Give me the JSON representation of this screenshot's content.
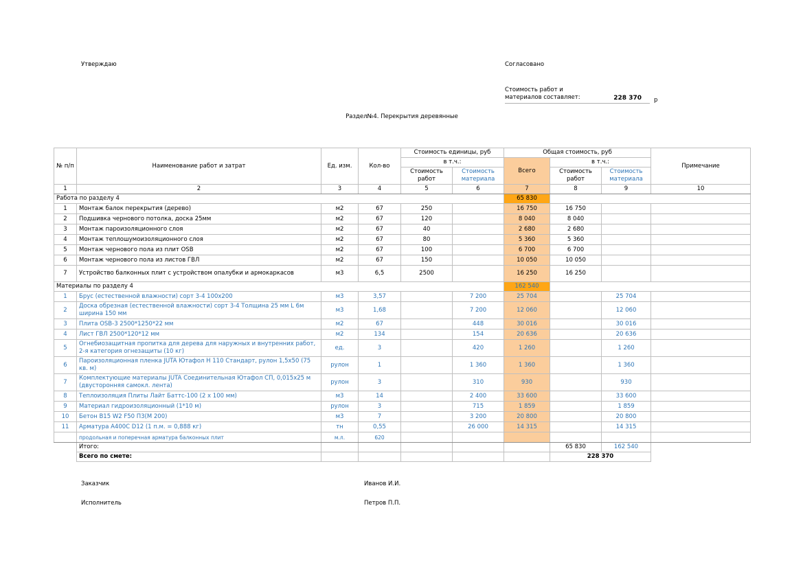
{
  "page": {
    "approve_label": "Утверждаю",
    "agree_label": "Согласовано",
    "cost_statement_label": "Стоимость работ и материалов составляет:",
    "cost_total": "228 370",
    "currency": "р",
    "section_title": "Раздел№4. Перекрытия деревянные"
  },
  "table": {
    "headers": {
      "num": "№ п/п",
      "name": "Наименование работ и затрат",
      "unit": "Ед. изм.",
      "qty": "Кол-во",
      "unit_cost_group": "Стоимость единицы, руб",
      "total_cost_group": "Общая стоимость, руб",
      "incl": "в т.ч.:",
      "work_cost": "Стоимость работ",
      "material_cost": "Стоимость материала",
      "total": "Всего",
      "note": "Примечание"
    },
    "column_numbers": [
      "1",
      "2",
      "3",
      "4",
      "5",
      "6",
      "7",
      "8",
      "9",
      "10"
    ],
    "sections": [
      {
        "title": "Работа по разделу 4",
        "total": "65 830",
        "materials": false,
        "rows": [
          {
            "num": "1",
            "name": "Монтаж балок перекрытия (дерево)",
            "unit": "м2",
            "qty": "67",
            "unit_work": "250",
            "unit_mat": "",
            "total": "16 750",
            "work": "16 750",
            "mat": "",
            "note": ""
          },
          {
            "num": "2",
            "name": "Подшивка чернового потолка, доска 25мм",
            "unit": "м2",
            "qty": "67",
            "unit_work": "120",
            "unit_mat": "",
            "total": "8 040",
            "work": "8 040",
            "mat": "",
            "note": ""
          },
          {
            "num": "3",
            "name": "Монтаж пароизоляционного слоя",
            "unit": "м2",
            "qty": "67",
            "unit_work": "40",
            "unit_mat": "",
            "total": "2 680",
            "work": "2 680",
            "mat": "",
            "note": ""
          },
          {
            "num": "4",
            "name": "Монтаж теплошумоизоляционного слоя",
            "unit": "м2",
            "qty": "67",
            "unit_work": "80",
            "unit_mat": "",
            "total": "5 360",
            "work": "5 360",
            "mat": "",
            "note": ""
          },
          {
            "num": "5",
            "name": "Монтаж чернового пола из плит OSB",
            "unit": "м2",
            "qty": "67",
            "unit_work": "100",
            "unit_mat": "",
            "total": "6 700",
            "work": "6 700",
            "mat": "",
            "note": ""
          },
          {
            "num": "6",
            "name": "Монтаж чернового пола из листов ГВЛ",
            "unit": "м2",
            "qty": "67",
            "unit_work": "150",
            "unit_mat": "",
            "total": "10 050",
            "work": "10 050",
            "mat": "",
            "note": ""
          },
          {
            "num": "7",
            "name": "Устройство балконных плит с устройством опалубки и армокаркасов",
            "unit": "м3",
            "qty": "6,5",
            "unit_work": "2500",
            "unit_mat": "",
            "total": "16 250",
            "work": "16 250",
            "mat": "",
            "note": "",
            "tall": true
          }
        ]
      },
      {
        "title": "Материалы по разделу 4",
        "total": "162 540",
        "materials": true,
        "rows": [
          {
            "num": "1",
            "name": "Брус (естественной влажности) сорт 3-4 100х200",
            "unit": "м3",
            "qty": "3,57",
            "unit_work": "",
            "unit_mat": "7 200",
            "total": "25 704",
            "work": "",
            "mat": "25 704",
            "note": ""
          },
          {
            "num": "2",
            "name": "Доска обрезная (естественной влажности) сорт 3-4 Толщина 25 мм L 6м ширина 150 мм",
            "unit": "м3",
            "qty": "1,68",
            "unit_work": "",
            "unit_mat": "7 200",
            "total": "12 060",
            "work": "",
            "mat": "12 060",
            "note": ""
          },
          {
            "num": "3",
            "name": "Плита OSB-3 2500*1250*22 мм",
            "unit": "м2",
            "qty": "67",
            "unit_work": "",
            "unit_mat": "448",
            "total": "30 016",
            "work": "",
            "mat": "30 016",
            "note": ""
          },
          {
            "num": "4",
            "name": "Лист ГВЛ 2500*120*12 мм",
            "unit": "м2",
            "qty": "134",
            "unit_work": "",
            "unit_mat": "154",
            "total": "20 636",
            "work": "",
            "mat": "20 636",
            "note": ""
          },
          {
            "num": "5",
            "name": "Огнебиозащитная пропитка для дерева для наружных и внутренних работ, 2-я категория огнезащиты (10 кг)",
            "unit": "ед.",
            "qty": "3",
            "unit_work": "",
            "unit_mat": "420",
            "total": "1 260",
            "work": "",
            "mat": "1 260",
            "note": ""
          },
          {
            "num": "6",
            "name": "Пароизоляционная пленка JUTA Ютафол Н 110 Стандарт, рулон 1,5х50 (75 кв. м)",
            "unit": "рулон",
            "qty": "1",
            "unit_work": "",
            "unit_mat": "1 360",
            "total": "1 360",
            "work": "",
            "mat": "1 360",
            "note": ""
          },
          {
            "num": "7",
            "name": "Комплектующие материалы JUTA Соединительная Ютафол СП, 0,015х25 м (двусторонняя самокл. лента)",
            "unit": "рулон",
            "qty": "3",
            "unit_work": "",
            "unit_mat": "310",
            "total": "930",
            "work": "",
            "mat": "930",
            "note": ""
          },
          {
            "num": "8",
            "name": "Теплоизоляция Плиты Лайт Баттс-100 (2 х 100 мм)",
            "unit": "м3",
            "qty": "14",
            "unit_work": "",
            "unit_mat": "2 400",
            "total": "33 600",
            "work": "",
            "mat": "33 600",
            "note": ""
          },
          {
            "num": "9",
            "name": "Материал гидроизоляционный (1*10 м)",
            "unit": "рулон",
            "qty": "3",
            "unit_work": "",
            "unit_mat": "715",
            "total": "1 859",
            "work": "",
            "mat": "1 859",
            "note": ""
          },
          {
            "num": "10",
            "name": "Бетон В15 W2 F50 П3(М 200)",
            "unit": "м3",
            "qty": "7",
            "unit_work": "",
            "unit_mat": "3 200",
            "total": "20 800",
            "work": "",
            "mat": "20 800",
            "note": ""
          },
          {
            "num": "11",
            "name": "Арматура А400С D12 (1 п.м. = 0,888 кг)",
            "unit": "тн",
            "qty": "0,55",
            "unit_work": "",
            "unit_mat": "26 000",
            "total": "14 315",
            "work": "",
            "mat": "14 315",
            "note": ""
          },
          {
            "num": "",
            "name": "продольная и поперечная арматура балконных плит",
            "unit": "м.л.",
            "qty": "620",
            "unit_work": "",
            "unit_mat": "",
            "total": "",
            "work": "",
            "mat": "",
            "note": "",
            "small": true
          }
        ]
      }
    ],
    "footer": {
      "itogo_label": "Итого:",
      "itogo_work": "65 830",
      "itogo_mat": "162 540",
      "grand_label": "Всего по смете:",
      "grand_total": "228 370"
    }
  },
  "signatures": [
    {
      "role": "Заказчик",
      "name": "Иванов И.И."
    },
    {
      "role": "Исполнитель",
      "name": "Петров П.П."
    }
  ],
  "colors": {
    "accent_orange": "#FFA615",
    "accent_peach": "#FBCD9C",
    "material_blue": "#2E75B6",
    "grid_gray": "#C0C0C0"
  }
}
